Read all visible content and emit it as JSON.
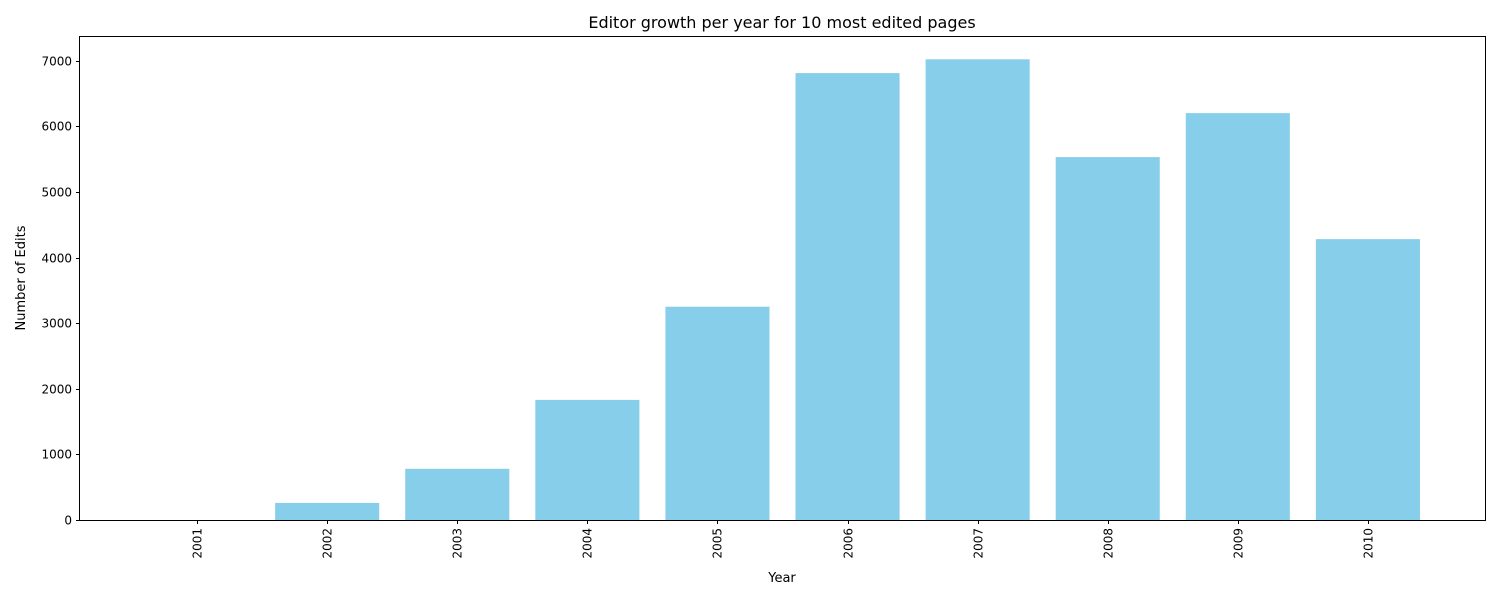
{
  "chart_data": {
    "type": "bar",
    "title": "Editor growth per year for 10 most edited pages",
    "xlabel": "Year",
    "ylabel": "Number of Edits",
    "categories": [
      "2001",
      "2002",
      "2003",
      "2004",
      "2005",
      "2006",
      "2007",
      "2008",
      "2009",
      "2010"
    ],
    "values": [
      0,
      260,
      780,
      1830,
      3250,
      6810,
      7020,
      5530,
      6200,
      4280
    ],
    "ylim": [
      0,
      7360
    ],
    "yticks": [
      0,
      1000,
      2000,
      3000,
      4000,
      5000,
      6000,
      7000
    ],
    "grid": false,
    "legend": "none",
    "bar_color": "#87ceeb"
  }
}
